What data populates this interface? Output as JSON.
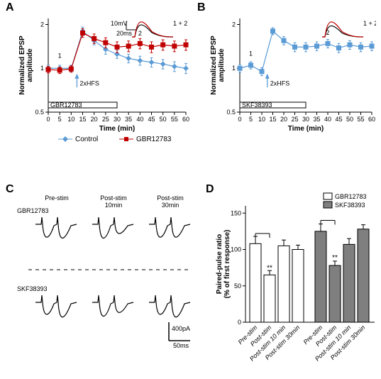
{
  "colors": {
    "control": "#5b9bd5",
    "gbr": "#c00000",
    "black": "#000000",
    "white": "#ffffff",
    "gray": "#7f7f7f"
  },
  "panelA": {
    "label": "A",
    "ylabel": "Normalized EPSP\namplitude",
    "xlabel": "Time (min)",
    "xticks": [
      0,
      5,
      10,
      15,
      20,
      25,
      30,
      35,
      40,
      45,
      50,
      55,
      60
    ],
    "yticks": [
      0.5,
      1,
      2
    ],
    "ylim": [
      0.5,
      2.2
    ],
    "series": {
      "control": {
        "label": "Control",
        "x": [
          0,
          5,
          10,
          15,
          20,
          25,
          30,
          35,
          40,
          45,
          50,
          55,
          60
        ],
        "y": [
          1.0,
          1.0,
          1.0,
          1.8,
          1.55,
          1.35,
          1.25,
          1.17,
          1.13,
          1.1,
          1.07,
          1.03,
          1.0
        ],
        "err": [
          0.05,
          0.05,
          0.05,
          0.12,
          0.1,
          0.1,
          0.08,
          0.08,
          0.08,
          0.08,
          0.08,
          0.08,
          0.08
        ]
      },
      "gbr": {
        "label": "GBR12783",
        "x": [
          0,
          5,
          10,
          15,
          20,
          25,
          30,
          35,
          40,
          45,
          50,
          55,
          60
        ],
        "y": [
          0.98,
          0.97,
          0.99,
          1.75,
          1.6,
          1.5,
          1.4,
          1.42,
          1.48,
          1.4,
          1.45,
          1.42,
          1.45
        ],
        "err": [
          0.05,
          0.05,
          0.05,
          0.12,
          0.12,
          0.12,
          0.12,
          0.12,
          0.12,
          0.12,
          0.12,
          0.12,
          0.12
        ]
      }
    },
    "hfs_label": "2xHFS",
    "drug_label": "GBR12783",
    "marker1": "1",
    "marker2": "2",
    "inset_scale_v": "10mV",
    "inset_scale_h": "20ms",
    "inset_label": "1 + 2"
  },
  "panelB": {
    "label": "B",
    "ylabel": "Normalized EPSP\namplitude",
    "xlabel": "Time (min)",
    "xticks": [
      0,
      5,
      10,
      15,
      20,
      25,
      30,
      35,
      40,
      45,
      50,
      55,
      60
    ],
    "yticks": [
      0.5,
      1,
      2
    ],
    "ylim": [
      0.5,
      2.2
    ],
    "series": {
      "skf": {
        "x": [
          0,
          5,
          10,
          15,
          20,
          25,
          30,
          35,
          40,
          45,
          50,
          55,
          60
        ],
        "y": [
          1.0,
          1.05,
          0.95,
          1.8,
          1.55,
          1.4,
          1.4,
          1.42,
          1.48,
          1.38,
          1.45,
          1.4,
          1.42
        ],
        "err": [
          0.06,
          0.06,
          0.06,
          0.1,
          0.1,
          0.1,
          0.1,
          0.1,
          0.1,
          0.1,
          0.1,
          0.1,
          0.1
        ]
      }
    },
    "hfs_label": "2xHFS",
    "drug_label": "SKF38393",
    "marker1": "1",
    "marker2": "2",
    "inset_label": "1 + 2"
  },
  "panelC": {
    "label": "C",
    "col_labels": [
      "Pre-stim",
      "Post-stim\n10min",
      "Post-stim\n30min"
    ],
    "row_labels": [
      "GBR12783",
      "SKF38393"
    ],
    "scale_v": "400pA",
    "scale_h": "50ms"
  },
  "panelD": {
    "label": "D",
    "ylabel": "Paired-pulse ratio\n(% of first response)",
    "yticks": [
      0,
      50,
      100,
      150
    ],
    "ylim": [
      0,
      160
    ],
    "groups": [
      "GBR12783",
      "SKF38393"
    ],
    "categories": [
      "Pre-stim",
      "Post-stim",
      "Post-stim 10 min",
      "Post-stim 30min"
    ],
    "values": {
      "GBR12783": [
        108,
        65,
        105,
        100
      ],
      "SKF38393": [
        125,
        78,
        107,
        128
      ]
    },
    "err": {
      "GBR12783": [
        10,
        6,
        8,
        6
      ],
      "SKF38393": [
        10,
        6,
        8,
        6
      ]
    },
    "sig": "**"
  }
}
